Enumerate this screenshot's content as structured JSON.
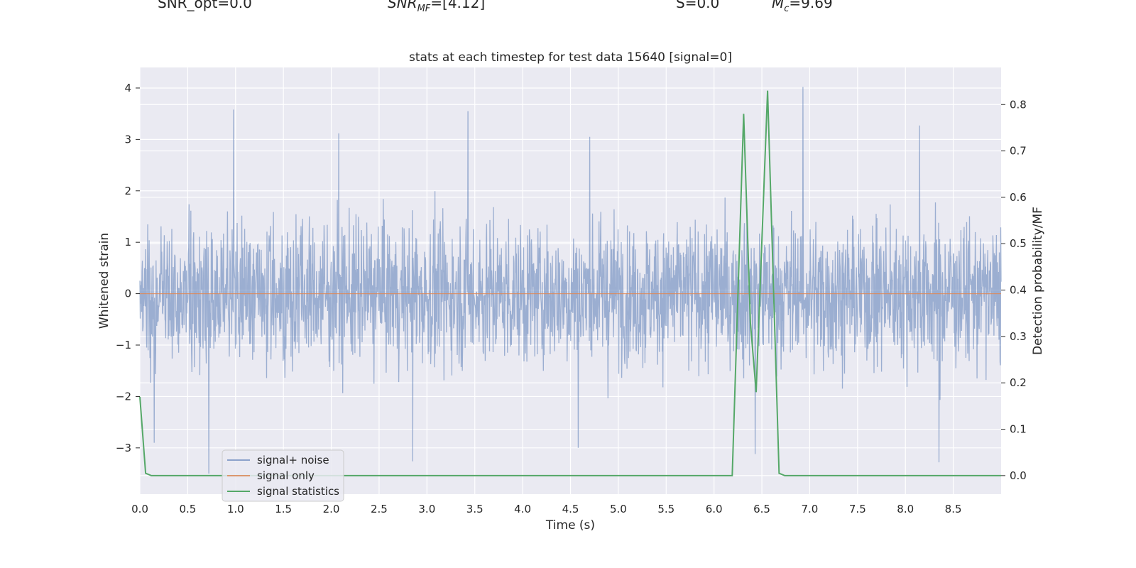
{
  "header": {
    "snr_opt_prefix": "SNR_opt=0.0",
    "snr_mf_main": "SNR",
    "snr_mf_sub": "MF",
    "snr_mf_value": "=[4.12]",
    "s_label": "S=0.0",
    "mc_main": "M",
    "mc_sub": "c",
    "mc_value": "=9.69"
  },
  "colors": {
    "background": "#eaeaf2",
    "grid": "#ffffff",
    "signal_noise": "#4c72b0",
    "signal_only": "#dd8452",
    "signal_statistics": "#55a868"
  },
  "chart_data": {
    "type": "line",
    "title": "stats at each timestep for test data 15640 [signal=0]",
    "xlabel": "Time (s)",
    "ylabel": "Whitened strain",
    "ylabel_right": "Detection probability/MF",
    "xlim": [
      0.0,
      9.0
    ],
    "ylim": [
      -3.9,
      4.4
    ],
    "ylim_right": [
      -0.04,
      0.88
    ],
    "xticks": [
      "0.0",
      "0.5",
      "1.0",
      "1.5",
      "2.0",
      "2.5",
      "3.0",
      "3.5",
      "4.0",
      "4.5",
      "5.0",
      "5.5",
      "6.0",
      "6.5",
      "7.0",
      "7.5",
      "8.0",
      "8.5"
    ],
    "yticks": [
      "−3",
      "−2",
      "−1",
      "0",
      "1",
      "2",
      "3",
      "4"
    ],
    "yticks_right": [
      "0.0",
      "0.1",
      "0.2",
      "0.3",
      "0.4",
      "0.5",
      "0.6",
      "0.7",
      "0.8"
    ],
    "grid": true,
    "legend_position": "lower-left",
    "series": [
      {
        "name": "signal+ noise",
        "description_values": "whitened noise, roughly within -2.5 to 2.5 with spikes",
        "spikes": [
          {
            "x": 0.98,
            "y": 3.58
          },
          {
            "x": 2.08,
            "y": 3.12
          },
          {
            "x": 3.43,
            "y": 3.55
          },
          {
            "x": 4.7,
            "y": 3.05
          },
          {
            "x": 6.93,
            "y": 4.02
          },
          {
            "x": 8.15,
            "y": 3.27
          },
          {
            "x": 0.72,
            "y": -3.5
          },
          {
            "x": 2.85,
            "y": -3.26
          },
          {
            "x": 8.35,
            "y": -3.28
          },
          {
            "x": 4.58,
            "y": -3.0
          },
          {
            "x": 6.43,
            "y": -3.12
          },
          {
            "x": 0.15,
            "y": -2.9
          }
        ]
      },
      {
        "name": "signal only",
        "x": [
          0.0,
          9.0
        ],
        "y": [
          0.0,
          0.0
        ]
      },
      {
        "name": "signal statistics",
        "axis": "right",
        "x": [
          0.0,
          0.06,
          0.12,
          6.19,
          6.31,
          6.38,
          6.44,
          6.56,
          6.68,
          6.74,
          9.0
        ],
        "y": [
          0.17,
          0.005,
          0.0,
          0.0,
          0.78,
          0.33,
          0.18,
          0.83,
          0.005,
          0.0,
          0.0
        ]
      }
    ]
  }
}
